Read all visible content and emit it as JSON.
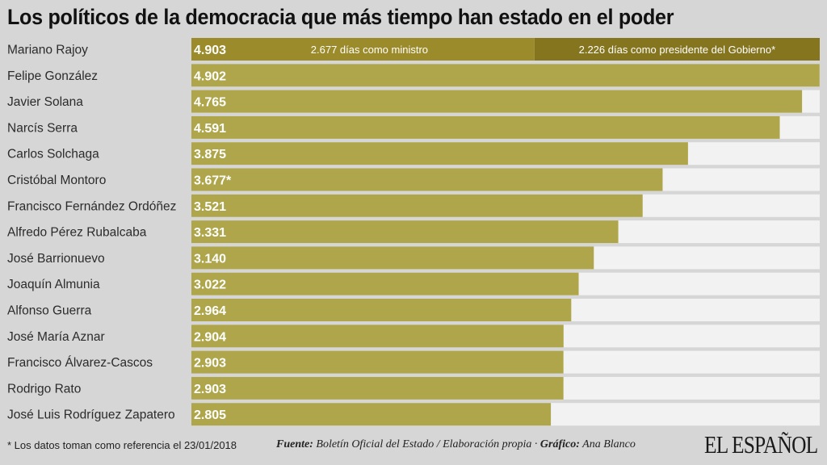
{
  "title": "Los políticos de la democracia que más tiempo han estado en el poder",
  "footnote": "* Los datos toman como referencia el 23/01/2018",
  "source": {
    "fuente_label": "Fuente:",
    "fuente_text": "Boletín Oficial del Estado / Elaboración propia ·",
    "grafico_label": "Gráfico:",
    "grafico_text": "Ana Blanco"
  },
  "logo": "EL ESPAÑOL",
  "colors": {
    "bar": "#afa64b",
    "bar_dark_minister": "#9c8b2a",
    "bar_dark_president": "#85751f",
    "track": "#f2f2f2",
    "background": "#d6d6d6"
  },
  "chart_data": {
    "type": "bar",
    "orientation": "horizontal",
    "title": "Los políticos de la democracia que más tiempo han estado en el poder",
    "xlabel": "",
    "ylabel": "",
    "unit": "días",
    "xlim": [
      0,
      4903
    ],
    "grid": false,
    "legend": "none",
    "categories": [
      "Mariano Rajoy",
      "Felipe González",
      "Javier Solana",
      "Narcís Serra",
      "Carlos Solchaga",
      "Cristóbal Montoro",
      "Francisco Fernández Ordóñez",
      "Alfredo Pérez Rubalcaba",
      "José Barrionuevo",
      "Joaquín Almunia",
      "Alfonso Guerra",
      "José María Aznar",
      "Francisco Álvarez-Cascos",
      "Rodrigo Rato",
      "José Luis Rodríguez Zapatero"
    ],
    "values": [
      4903,
      4902,
      4765,
      4591,
      3875,
      3677,
      3521,
      3331,
      3140,
      3022,
      2964,
      2904,
      2903,
      2903,
      2805
    ],
    "value_labels": [
      "4.903",
      "4.902",
      "4.765",
      "4.591",
      "3.875",
      "3.677*",
      "3.521",
      "3.331",
      "3.140",
      "3.022",
      "2.964",
      "2.904",
      "2.903",
      "2.903",
      "2.805"
    ],
    "stacked_breakdown": {
      "category": "Mariano Rajoy",
      "segments": [
        {
          "name": "ministro",
          "value": 2677,
          "label": "2.677 días como ministro"
        },
        {
          "name": "presidente",
          "value": 2226,
          "label": "2.226 días como presidente del Gobierno*"
        }
      ]
    }
  }
}
